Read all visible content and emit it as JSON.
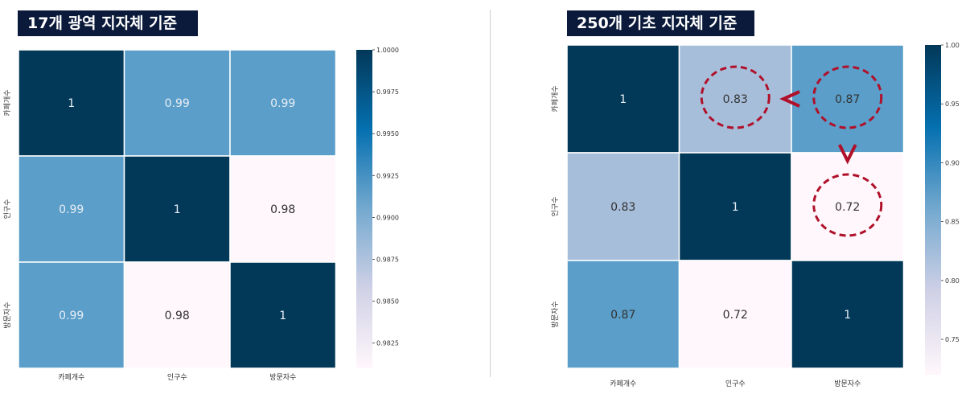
{
  "chart_data": [
    {
      "type": "heatmap",
      "title": "17개 광역 지자체 기준",
      "categories": [
        "카페개수",
        "인구수",
        "방문자수"
      ],
      "values": [
        [
          1,
          0.99,
          0.99
        ],
        [
          0.99,
          1,
          0.98
        ],
        [
          0.99,
          0.98,
          1
        ]
      ],
      "cell_labels": [
        [
          "1",
          "0.99",
          "0.99"
        ],
        [
          "0.99",
          "1",
          "0.98"
        ],
        [
          "0.99",
          "0.98",
          "1"
        ]
      ],
      "cell_colors": [
        [
          "#023858",
          "#5a9ec9",
          "#5a9ec9"
        ],
        [
          "#5a9ec9",
          "#023858",
          "#fff7fb"
        ],
        [
          "#5a9ec9",
          "#fff7fb",
          "#023858"
        ]
      ],
      "colorbar": {
        "range": [
          0.981,
          1.0
        ],
        "ticks": [
          1.0,
          0.9975,
          0.995,
          0.9925,
          0.99,
          0.9875,
          0.985,
          0.9825
        ],
        "tick_labels": [
          "1.0000",
          "0.9975",
          "0.9950",
          "0.9925",
          "0.9900",
          "0.9875",
          "0.9850",
          "0.9825"
        ],
        "colormap": "PuBu"
      }
    },
    {
      "type": "heatmap",
      "title": "250개 기초 지자체 기준",
      "categories": [
        "카페개수",
        "인구수",
        "방문자수"
      ],
      "values": [
        [
          1,
          0.83,
          0.87
        ],
        [
          0.83,
          1,
          0.72
        ],
        [
          0.87,
          0.72,
          1
        ]
      ],
      "cell_labels": [
        [
          "1",
          "0.83",
          "0.87"
        ],
        [
          "0.83",
          "1",
          "0.72"
        ],
        [
          "0.87",
          "0.72",
          "1"
        ]
      ],
      "cell_colors": [
        [
          "#023858",
          "#a7bedb",
          "#5a9ec9"
        ],
        [
          "#a7bedb",
          "#023858",
          "#fff7fb"
        ],
        [
          "#5a9ec9",
          "#fff7fb",
          "#023858"
        ]
      ],
      "colorbar": {
        "range": [
          0.72,
          1.0
        ],
        "ticks": [
          1.0,
          0.95,
          0.9,
          0.85,
          0.8,
          0.75
        ],
        "tick_labels": [
          "1.00",
          "0.95",
          "0.90",
          "0.85",
          "0.80",
          "0.75"
        ],
        "colormap": "PuBu"
      },
      "annotations": [
        {
          "type": "circle",
          "target": "0.83"
        },
        {
          "type": "circle",
          "target": "0.87"
        },
        {
          "type": "circle",
          "target": "0.72"
        },
        {
          "type": "comparison",
          "symbol": "<",
          "between": [
            "0.83",
            "0.87"
          ]
        },
        {
          "type": "comparison",
          "symbol": "v",
          "between": [
            "0.87",
            "0.72"
          ]
        }
      ]
    }
  ],
  "annotation_color": "#b0102a"
}
